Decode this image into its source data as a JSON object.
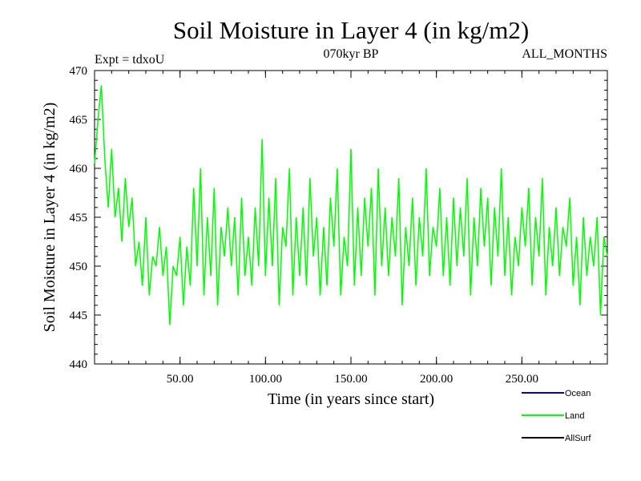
{
  "chart_data": {
    "type": "line",
    "title": "Soil Moisture in Layer 4 (in kg/m2)",
    "subtitle_left": "Expt = tdxoU",
    "subtitle_center": "070kyr BP",
    "subtitle_right": "ALL_MONTHS",
    "xlabel": "Time (in years since start)",
    "ylabel": "Soil Moisture in Layer 4 (in kg/m2)",
    "xlim": [
      0,
      300
    ],
    "ylim": [
      440,
      470
    ],
    "x_ticks": [
      50,
      100,
      150,
      200,
      250
    ],
    "x_tick_labels": [
      "50.00",
      "100.00",
      "150.00",
      "200.00",
      "250.00"
    ],
    "y_ticks": [
      440,
      445,
      450,
      455,
      460,
      465,
      470
    ],
    "y_tick_labels": [
      "440",
      "445",
      "450",
      "455",
      "460",
      "465",
      "470"
    ],
    "legend": [
      {
        "name": "Ocean",
        "color": "#0000cc"
      },
      {
        "name": "Land",
        "color": "#00ff00"
      },
      {
        "name": "AllSurf",
        "color": "#000000"
      }
    ],
    "series": [
      {
        "name": "Land",
        "color": "#00ff00",
        "x": [
          0,
          2,
          4,
          6,
          8,
          10,
          12,
          14,
          16,
          18,
          20,
          22,
          24,
          26,
          28,
          30,
          32,
          34,
          36,
          38,
          40,
          42,
          44,
          46,
          48,
          50,
          52,
          54,
          56,
          58,
          60,
          62,
          64,
          66,
          68,
          70,
          72,
          74,
          76,
          78,
          80,
          82,
          84,
          86,
          88,
          90,
          92,
          94,
          96,
          98,
          100,
          102,
          104,
          106,
          108,
          110,
          112,
          114,
          116,
          118,
          120,
          122,
          124,
          126,
          128,
          130,
          132,
          134,
          136,
          138,
          140,
          142,
          144,
          146,
          148,
          150,
          152,
          154,
          156,
          158,
          160,
          162,
          164,
          166,
          168,
          170,
          172,
          174,
          176,
          178,
          180,
          182,
          184,
          186,
          188,
          190,
          192,
          194,
          196,
          198,
          200,
          202,
          204,
          206,
          208,
          210,
          212,
          214,
          216,
          218,
          220,
          222,
          224,
          226,
          228,
          230,
          232,
          234,
          236,
          238,
          240,
          242,
          244,
          246,
          248,
          250,
          252,
          254,
          256,
          258,
          260,
          262,
          264,
          266,
          268,
          270,
          272,
          274,
          276,
          278,
          280,
          282,
          284,
          286,
          288,
          290,
          292,
          294,
          296,
          298,
          300
        ],
        "values": [
          460.5,
          465,
          468.5,
          461,
          456,
          462,
          455,
          458,
          452.5,
          459,
          454,
          457,
          450,
          452.5,
          448,
          455,
          447,
          451,
          450,
          454,
          449,
          452,
          444,
          450,
          449,
          453,
          446,
          452,
          448,
          458,
          450,
          460,
          447,
          455,
          449,
          458,
          446,
          454,
          451,
          456,
          450,
          455,
          447,
          457,
          449,
          453,
          448,
          456,
          450,
          463,
          449,
          457,
          450,
          459,
          446,
          454,
          452,
          460,
          447,
          455,
          449,
          456,
          448,
          459,
          451,
          455,
          447,
          454,
          448,
          457,
          452,
          460,
          447,
          453,
          450,
          462,
          448,
          456,
          449,
          457,
          452,
          458,
          447,
          460,
          450,
          456,
          449,
          455,
          451,
          459,
          446,
          454,
          450,
          457,
          448,
          455,
          451,
          460,
          449,
          454,
          452,
          458,
          449,
          455,
          448,
          457,
          450,
          456,
          451,
          459,
          447,
          455,
          450,
          458,
          452,
          457,
          448,
          456,
          451,
          460,
          449,
          455,
          447,
          453,
          450,
          456,
          452,
          458,
          448,
          455,
          451,
          459,
          447,
          454,
          450,
          456,
          449,
          454,
          452,
          457,
          448,
          453,
          446,
          455,
          449,
          453,
          450,
          455,
          445,
          453,
          451
        ]
      }
    ]
  }
}
